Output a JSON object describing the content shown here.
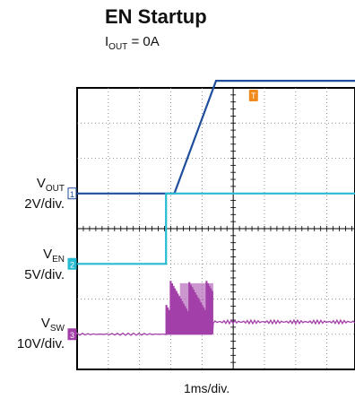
{
  "title": "EN Startup",
  "subtitle": {
    "prefix": "I",
    "sub": "OUT",
    "suffix": " = 0A"
  },
  "chart_data": {
    "type": "line",
    "xlabel": "1ms/div.",
    "trigger_marker": "T",
    "series": [
      {
        "name_main": "V",
        "name_sub": "OUT",
        "scale": "2V/div.",
        "marker": "1",
        "color": "#1f4e9c",
        "x": [
          0,
          3.5,
          5.0,
          5.8,
          10
        ],
        "y": [
          0,
          0,
          3.2,
          3.2,
          3.2
        ]
      },
      {
        "name_main": "V",
        "name_sub": "EN",
        "scale": "5V/div.",
        "marker": "2",
        "color": "#27bcd1",
        "x": [
          0,
          3.2,
          3.2,
          10
        ],
        "y": [
          0,
          0,
          2.0,
          2.0
        ]
      },
      {
        "name_main": "V",
        "name_sub": "SW",
        "scale": "10V/div.",
        "marker": "3",
        "color": "#a23fa8",
        "x": [
          0,
          3.2,
          5.0,
          10
        ],
        "y": [
          0,
          0.15,
          0.8,
          0.55
        ]
      }
    ],
    "grid": true
  }
}
